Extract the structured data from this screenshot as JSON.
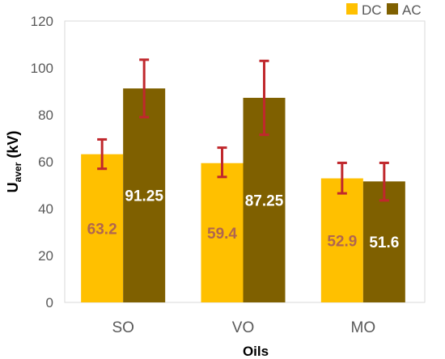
{
  "chart_data": {
    "type": "bar",
    "xlabel": "Oils",
    "ylabel": "U",
    "ylabel_sub": "aver",
    "ylabel_unit": " (kV)",
    "ylim": [
      0,
      120
    ],
    "yticks": [
      0,
      20,
      40,
      60,
      80,
      100,
      120
    ],
    "categories": [
      "SO",
      "VO",
      "MO"
    ],
    "series": [
      {
        "name": "DC",
        "color": "#FFC000",
        "values": [
          63.2,
          59.4,
          52.9
        ],
        "labels": [
          "63.2",
          "59.4",
          "52.9"
        ],
        "label_color": "#B0664F",
        "error_low": [
          57.0,
          53.5,
          46.5
        ],
        "error_high": [
          69.5,
          66.0,
          59.5
        ]
      },
      {
        "name": "AC",
        "color": "#7F6000",
        "values": [
          91.25,
          87.25,
          51.6
        ],
        "labels": [
          "91.25",
          "87.25",
          "51.6"
        ],
        "label_color": "#FFFFFF",
        "error_low": [
          79.0,
          71.5,
          43.5
        ],
        "error_high": [
          103.5,
          103.0,
          59.5
        ]
      }
    ],
    "error_bar_color": "#C0282D",
    "legend_position": "top-right",
    "grid": false
  }
}
